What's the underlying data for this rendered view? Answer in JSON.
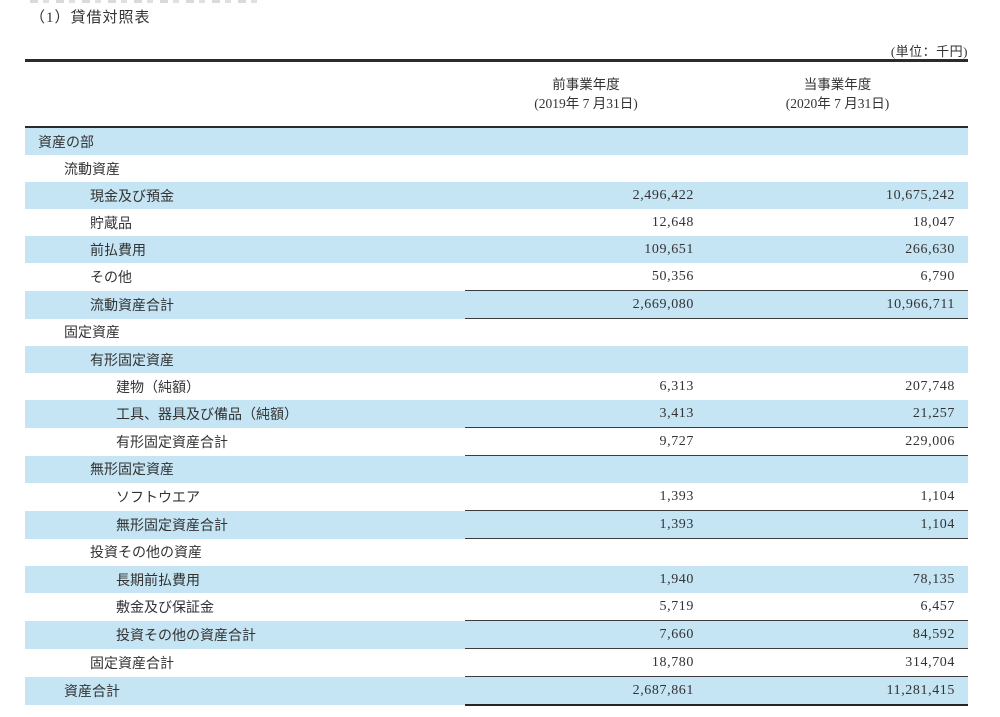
{
  "document": {
    "heading": "（1）貸借対照表",
    "unit_note": "(単位：千円)"
  },
  "table": {
    "columns": [
      {
        "period": "前事業年度",
        "date": "(2019年 7 月31日)"
      },
      {
        "period": "当事業年度",
        "date": "(2020年 7 月31日)"
      }
    ],
    "rows": [
      {
        "label": "資産の部",
        "indent": 1,
        "prev": "",
        "curr": "",
        "shaded": true,
        "rule": "none"
      },
      {
        "label": "流動資産",
        "indent": 2,
        "prev": "",
        "curr": "",
        "shaded": false,
        "rule": "none"
      },
      {
        "label": "現金及び預金",
        "indent": 3,
        "prev": "2,496,422",
        "curr": "10,675,242",
        "shaded": true,
        "rule": "none"
      },
      {
        "label": "貯蔵品",
        "indent": 3,
        "prev": "12,648",
        "curr": "18,047",
        "shaded": false,
        "rule": "none"
      },
      {
        "label": "前払費用",
        "indent": 3,
        "prev": "109,651",
        "curr": "266,630",
        "shaded": true,
        "rule": "none"
      },
      {
        "label": "その他",
        "indent": 3,
        "prev": "50,356",
        "curr": "6,790",
        "shaded": false,
        "rule": "none"
      },
      {
        "label": "流動資産合計",
        "indent": 3,
        "prev": "2,669,080",
        "curr": "10,966,711",
        "shaded": true,
        "rule": "subtotal"
      },
      {
        "label": "固定資産",
        "indent": 2,
        "prev": "",
        "curr": "",
        "shaded": false,
        "rule": "none"
      },
      {
        "label": "有形固定資産",
        "indent": 3,
        "prev": "",
        "curr": "",
        "shaded": true,
        "rule": "none"
      },
      {
        "label": "建物（純額）",
        "indent": 4,
        "prev": "6,313",
        "curr": "207,748",
        "shaded": false,
        "rule": "none"
      },
      {
        "label": "工具、器具及び備品（純額）",
        "indent": 4,
        "prev": "3,413",
        "curr": "21,257",
        "shaded": true,
        "rule": "none"
      },
      {
        "label": "有形固定資産合計",
        "indent": 4,
        "prev": "9,727",
        "curr": "229,006",
        "shaded": false,
        "rule": "subtotal"
      },
      {
        "label": "無形固定資産",
        "indent": 3,
        "prev": "",
        "curr": "",
        "shaded": true,
        "rule": "none"
      },
      {
        "label": "ソフトウエア",
        "indent": 4,
        "prev": "1,393",
        "curr": "1,104",
        "shaded": false,
        "rule": "none"
      },
      {
        "label": "無形固定資産合計",
        "indent": 4,
        "prev": "1,393",
        "curr": "1,104",
        "shaded": true,
        "rule": "subtotal"
      },
      {
        "label": "投資その他の資産",
        "indent": 3,
        "prev": "",
        "curr": "",
        "shaded": false,
        "rule": "none"
      },
      {
        "label": "長期前払費用",
        "indent": 4,
        "prev": "1,940",
        "curr": "78,135",
        "shaded": true,
        "rule": "none"
      },
      {
        "label": "敷金及び保証金",
        "indent": 4,
        "prev": "5,719",
        "curr": "6,457",
        "shaded": false,
        "rule": "none"
      },
      {
        "label": "投資その他の資産合計",
        "indent": 4,
        "prev": "7,660",
        "curr": "84,592",
        "shaded": true,
        "rule": "subtotal"
      },
      {
        "label": "固定資産合計",
        "indent": 3,
        "prev": "18,780",
        "curr": "314,704",
        "shaded": false,
        "rule": "none"
      },
      {
        "label": "資産合計",
        "indent": 2,
        "prev": "2,687,861",
        "curr": "11,281,415",
        "shaded": true,
        "rule": "grand-total"
      }
    ]
  },
  "colors": {
    "row_highlight": "#c5e4f4",
    "text": "#333333",
    "rule": "#2b2b2b"
  }
}
